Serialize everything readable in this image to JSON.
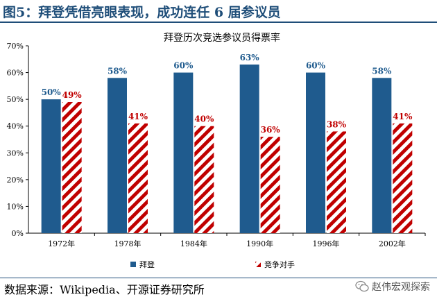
{
  "header": {
    "title": "图5：拜登凭借亮眼表现，成功连任 6 届参议员"
  },
  "chart_data": {
    "type": "bar",
    "title": "拜登历次竞选参议员得票率",
    "categories": [
      "1972年",
      "1978年",
      "1984年",
      "1990年",
      "1996年",
      "2002年"
    ],
    "series": [
      {
        "name": "拜登",
        "values": [
          50,
          58,
          60,
          63,
          60,
          58
        ],
        "labels": [
          "50%",
          "58%",
          "60%",
          "63%",
          "60%",
          "58%"
        ],
        "color": "#1f5b8e",
        "label_color": "#1f5b8e"
      },
      {
        "name": "竞争对手",
        "values": [
          49,
          41,
          40,
          36,
          38,
          41
        ],
        "labels": [
          "49%",
          "41%",
          "40%",
          "36%",
          "38%",
          "41%"
        ],
        "color": "#c00000",
        "label_color": "#c00000"
      }
    ],
    "y_ticks": [
      "0%",
      "10%",
      "20%",
      "30%",
      "40%",
      "50%",
      "60%",
      "70%"
    ],
    "ylim": [
      0,
      70
    ],
    "grid": false,
    "legend": "bottom"
  },
  "footer": {
    "source": "数据来源：Wikipedia、开源证券研究所",
    "watermark": "赵伟宏观探索"
  }
}
